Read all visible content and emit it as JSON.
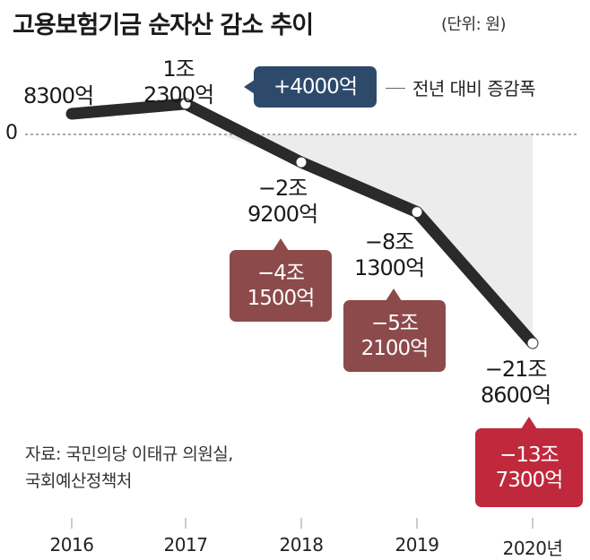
{
  "title": "고용보험기금 순자산 감소 추이",
  "unit": "(단위: 원)",
  "zero_label": "0",
  "legend_label": "전년 대비 증감폭",
  "source_lines": [
    "자료: 국민의당 이태규 의원실,",
    "국회예산정책처"
  ],
  "colors": {
    "line": "#2a2a2a",
    "positive_box": "#2e4a6b",
    "negative_box": "#8c4a4a",
    "latest_box": "#c0283c",
    "shade": "#ececec"
  },
  "chart_data": {
    "type": "line",
    "title": "고용보험기금 순자산 감소 추이",
    "unit": "(단위: 원)",
    "x": [
      "2016",
      "2017",
      "2018",
      "2019",
      "2020년"
    ],
    "values_krw": [
      830000000000,
      1230000000000,
      -2920000000000,
      -8130000000000,
      -21860000000000
    ],
    "value_labels": [
      [
        "8300억"
      ],
      [
        "1조",
        "2300억"
      ],
      [
        "−2조",
        "9200억"
      ],
      [
        "−8조",
        "1300억"
      ],
      [
        "−21조",
        "8600억"
      ]
    ],
    "change_labels": [
      null,
      [
        "+4000억"
      ],
      [
        "−4조",
        "1500억"
      ],
      [
        "−5조",
        "2100억"
      ],
      [
        "−13조",
        "7300억"
      ]
    ],
    "change_values_krw": [
      null,
      400000000000,
      -4150000000000,
      -5210000000000,
      -13730000000000
    ],
    "grid": false,
    "zero_line": true
  }
}
